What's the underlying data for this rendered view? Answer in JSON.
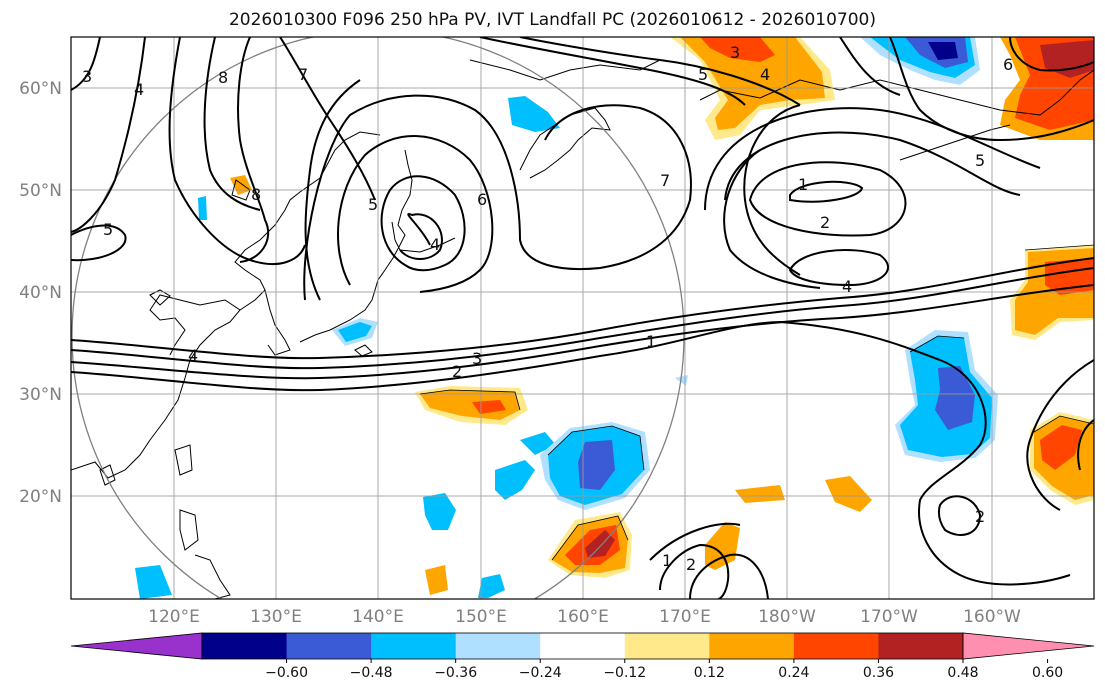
{
  "title": "2026010300 F096 250 hPa PV, IVT Landfall PC (2026010612 - 2026010700)",
  "map": {
    "projection": "PlateCarree",
    "extent_lon": [
      110,
      210
    ],
    "extent_lat": [
      10,
      65
    ],
    "lon_ticks": [
      "120°E",
      "130°E",
      "140°E",
      "150°E",
      "160°E",
      "170°E",
      "180°W",
      "170°W",
      "160°W"
    ],
    "lat_ticks": [
      "60°N",
      "50°N",
      "40°N",
      "30°N",
      "20°N"
    ],
    "contour_labels": [
      "3",
      "4",
      "8",
      "7",
      "8",
      "5",
      "5",
      "4",
      "6",
      "7",
      "3",
      "4",
      "5",
      "6",
      "5",
      "1",
      "2",
      "4",
      "4",
      "2",
      "3",
      "1",
      "2",
      "1",
      "2"
    ]
  },
  "colorbar": {
    "tick_labels": [
      "−0.60",
      "−0.48",
      "−0.36",
      "−0.24",
      "−0.12",
      "0.12",
      "0.24",
      "0.36",
      "0.48",
      "0.60"
    ],
    "colors": [
      "#9932cc",
      "#00008b",
      "#3b5bd6",
      "#00bfff",
      "#b0e0ff",
      "#ffffff",
      "#ffe98a",
      "#ffa500",
      "#ff4500",
      "#b22222",
      "#ff8fb0"
    ]
  }
}
